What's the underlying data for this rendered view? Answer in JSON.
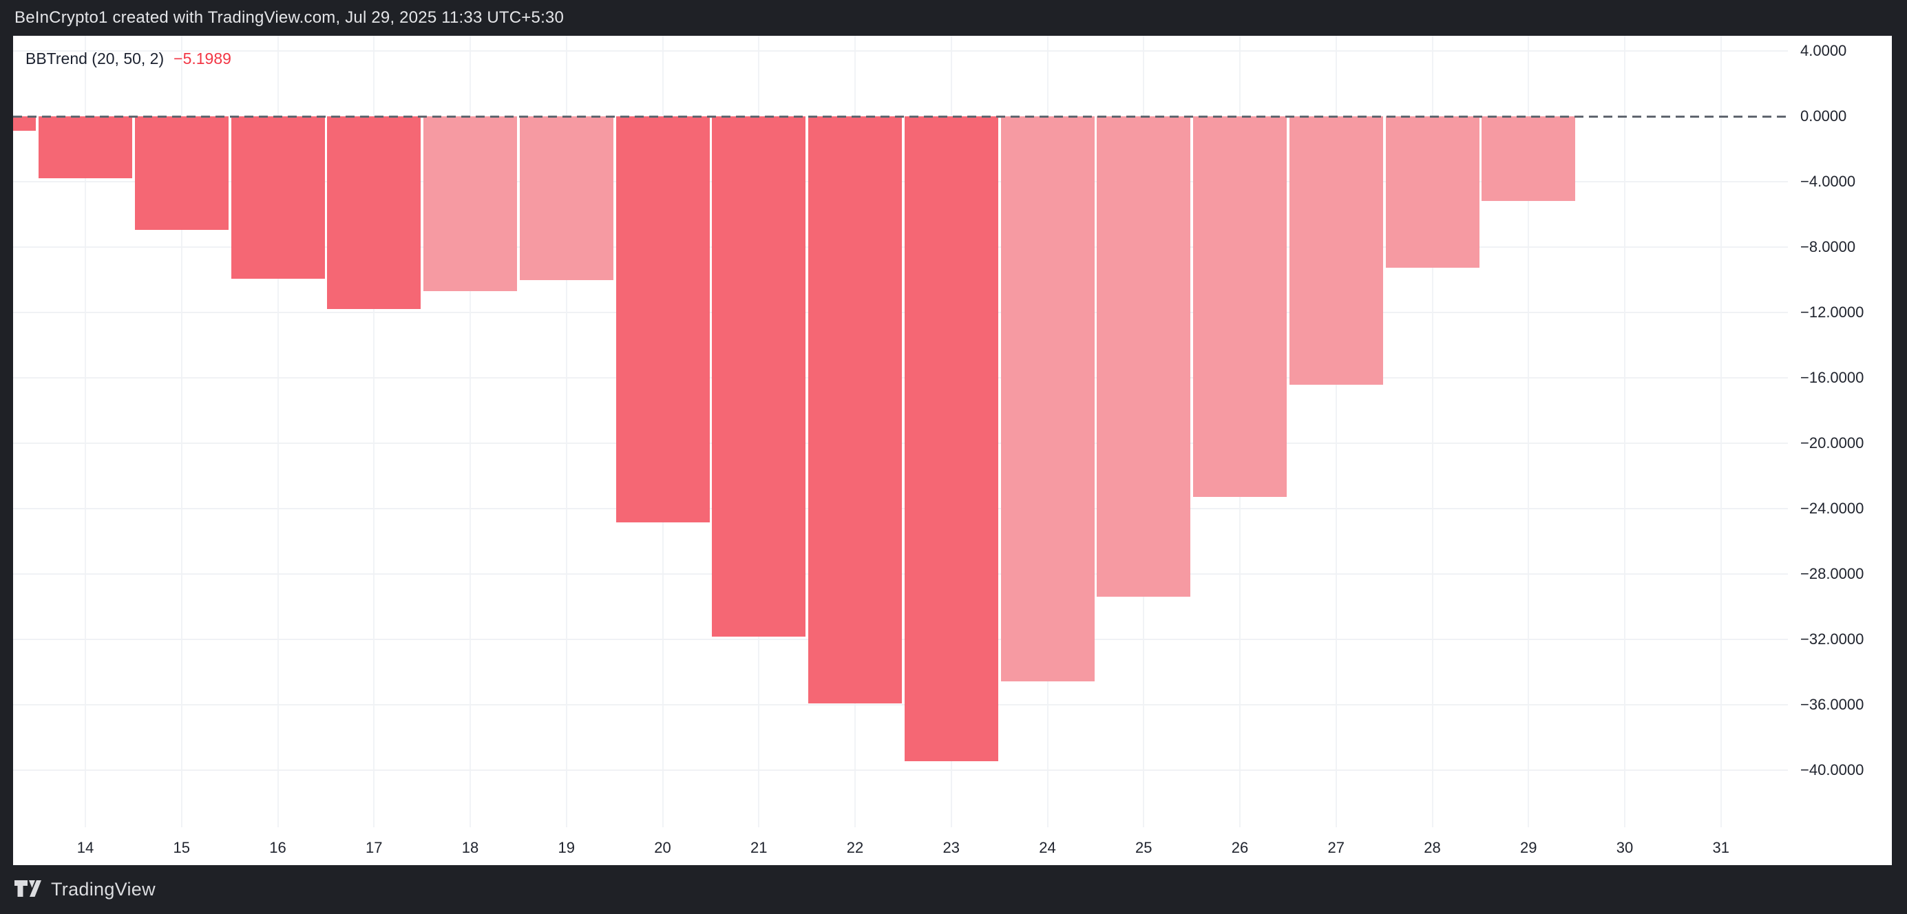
{
  "header": {
    "title": "BeInCrypto1 created with TradingView.com, Jul 29, 2025 11:33 UTC+5:30"
  },
  "legend": {
    "indicator": "BBTrend (20, 50, 2)",
    "value": "−5.1989"
  },
  "footer": {
    "brand": "TradingView",
    "logo_icon": "tradingview-logo"
  },
  "colors": {
    "frame": "#1f2126",
    "pane": "#ffffff",
    "bar_falling": "#f56774",
    "bar_rising": "#f69aa2",
    "legend_value": "#f23645",
    "axis_text": "#20242e",
    "title_text": "#e4e5e8",
    "grid": "#f0f2f5",
    "zero_line": "#60666f"
  },
  "chart_data": {
    "type": "bar",
    "title": "BBTrend (20, 50, 2)",
    "series_name": "BBTrend",
    "x_days": [
      13,
      14,
      15,
      16,
      17,
      18,
      19,
      20,
      21,
      22,
      23,
      24,
      25,
      26,
      27,
      28,
      29
    ],
    "values": [
      -0.9,
      -3.8,
      -6.95,
      -9.95,
      -11.8,
      -10.7,
      -10.0,
      -24.85,
      -31.85,
      -35.9,
      -39.45,
      -34.55,
      -29.4,
      -23.3,
      -16.4,
      -9.25,
      -5.1989
    ],
    "trend": [
      "falling",
      "falling",
      "falling",
      "falling",
      "falling",
      "rising",
      "rising",
      "falling",
      "falling",
      "falling",
      "falling",
      "rising",
      "rising",
      "rising",
      "rising",
      "rising",
      "rising"
    ],
    "last_value_label": "−5.1989",
    "x_ticks": [
      "14",
      "15",
      "16",
      "17",
      "18",
      "19",
      "20",
      "21",
      "22",
      "23",
      "24",
      "25",
      "26",
      "27",
      "28",
      "29",
      "30",
      "31"
    ],
    "y_ticks": [
      {
        "v": 4,
        "label": "4.0000"
      },
      {
        "v": 0,
        "label": "0.0000"
      },
      {
        "v": -4,
        "label": "−4.0000"
      },
      {
        "v": -8,
        "label": "−8.0000"
      },
      {
        "v": -12,
        "label": "−12.0000"
      },
      {
        "v": -16,
        "label": "−16.0000"
      },
      {
        "v": -20,
        "label": "−20.0000"
      },
      {
        "v": -24,
        "label": "−24.0000"
      },
      {
        "v": -28,
        "label": "−28.0000"
      },
      {
        "v": -32,
        "label": "−32.0000"
      },
      {
        "v": -36,
        "label": "−36.0000"
      },
      {
        "v": -40,
        "label": "−40.0000"
      }
    ],
    "ylim": [
      4,
      -40
    ],
    "zero_line_dashed": true,
    "grid": true,
    "legend_position": "top-left"
  }
}
